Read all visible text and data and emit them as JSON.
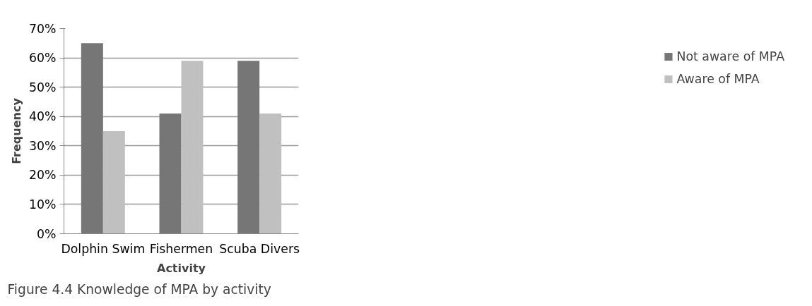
{
  "chart_data": {
    "type": "bar",
    "title": "Figure 4.4 Knowledge of MPA by activity",
    "xlabel": "Activity",
    "ylabel": "Frequency",
    "categories": [
      "Dolphin Swim",
      "Fishermen",
      "Scuba Divers"
    ],
    "series": [
      {
        "name": "Not aware of MPA",
        "color": "#767676",
        "values": [
          65,
          41,
          59
        ]
      },
      {
        "name": "Aware of MPA",
        "color": "#c0c0c0",
        "values": [
          35,
          59,
          41
        ]
      }
    ],
    "ylim": [
      0,
      70
    ],
    "yticks": [
      {
        "value": 0,
        "label": "0%"
      },
      {
        "value": 10,
        "label": "10%"
      },
      {
        "value": 20,
        "label": "20%"
      },
      {
        "value": 30,
        "label": "30%"
      },
      {
        "value": 40,
        "label": "40%"
      },
      {
        "value": 50,
        "label": "50%"
      },
      {
        "value": 60,
        "label": "60%"
      },
      {
        "value": 70,
        "label": "70%"
      }
    ],
    "grid": "y",
    "legend": "right"
  }
}
